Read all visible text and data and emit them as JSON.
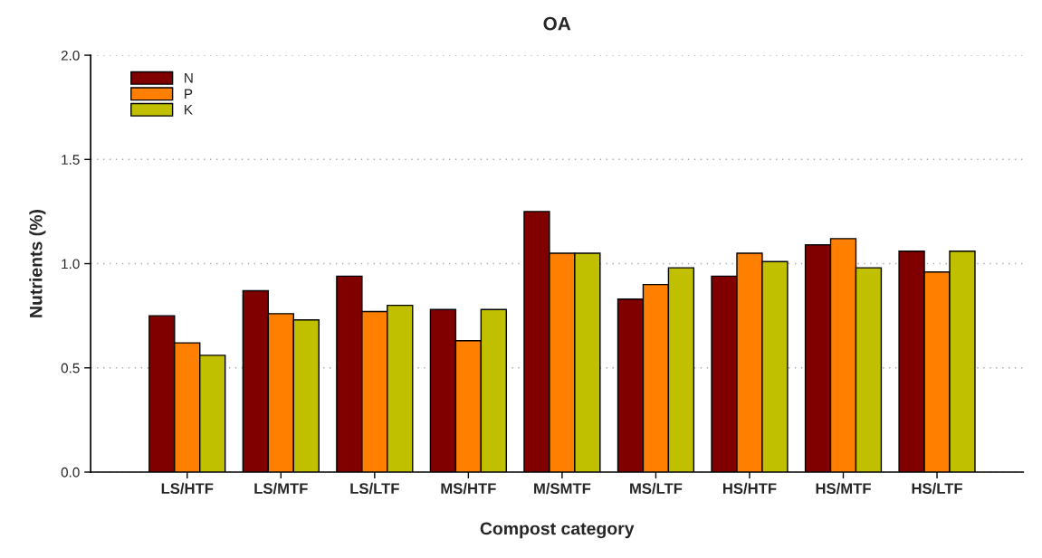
{
  "chart_data": {
    "type": "bar",
    "title": "OA",
    "xlabel": "Compost category",
    "ylabel": "Nutrients (%)",
    "categories": [
      "LS/HTF",
      "LS/MTF",
      "LS/LTF",
      "MS/HTF",
      "M/SMTF",
      "MS/LTF",
      "HS/HTF",
      "HS/MTF",
      "HS/LTF"
    ],
    "series": [
      {
        "name": "N",
        "color": "#800000",
        "values": [
          0.75,
          0.87,
          0.94,
          0.78,
          1.25,
          0.83,
          0.94,
          1.09,
          1.06
        ]
      },
      {
        "name": "P",
        "color": "#ff8000",
        "values": [
          0.62,
          0.76,
          0.77,
          0.63,
          1.05,
          0.9,
          1.05,
          1.12,
          0.96
        ]
      },
      {
        "name": "K",
        "color": "#c0c000",
        "values": [
          0.56,
          0.73,
          0.8,
          0.78,
          1.05,
          0.98,
          1.01,
          0.98,
          1.06
        ]
      }
    ],
    "ylim": [
      0.0,
      2.0
    ],
    "yticks": [
      {
        "value": 0.0,
        "label": "0.0"
      },
      {
        "value": 0.5,
        "label": "0.5"
      },
      {
        "value": 1.0,
        "label": "1.0"
      },
      {
        "value": 1.5,
        "label": "1.5"
      },
      {
        "value": 2.0,
        "label": "2.0"
      }
    ],
    "grid": "y",
    "legend": "top left"
  }
}
